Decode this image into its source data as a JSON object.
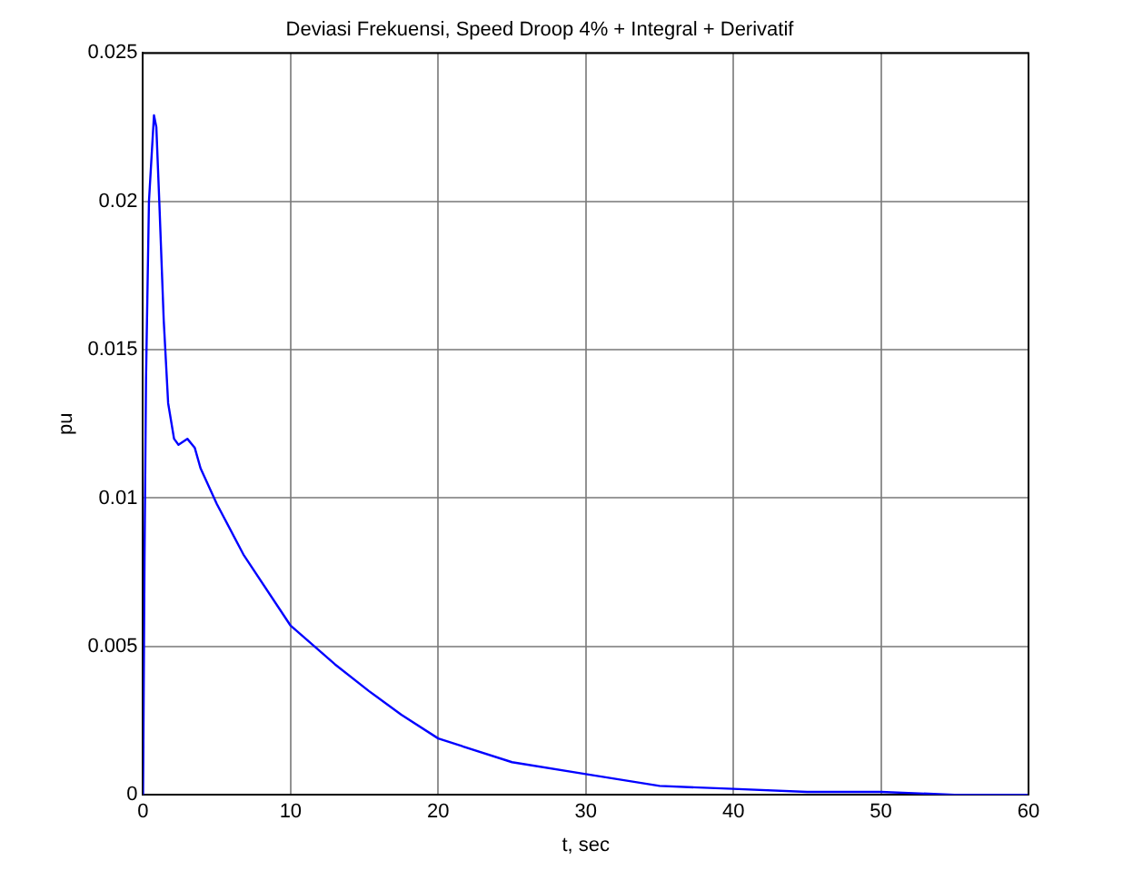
{
  "chart_data": {
    "type": "line",
    "title": "Deviasi Frekuensi, Speed Droop 4% + Integral + Derivatif",
    "xlabel": "t, sec",
    "ylabel": "pu",
    "xlim": [
      0,
      60
    ],
    "xticks": [
      0,
      10,
      20,
      30,
      40,
      50,
      60
    ],
    "ylim": [
      0,
      0.025
    ],
    "yticks": [
      0,
      0.005,
      0.01,
      0.015,
      0.02,
      0.025
    ],
    "grid": true,
    "legend": false,
    "marker": "none",
    "line_style": "solid",
    "series": [
      {
        "color": "#0000ff",
        "x": [
          0,
          0.1,
          0.2,
          0.4,
          0.74,
          0.9,
          1.1,
          1.4,
          1.7,
          2.1,
          2.4,
          3.0,
          3.5,
          3.9,
          5,
          6.8,
          10,
          13,
          15.3,
          17.5,
          20,
          25,
          30,
          35,
          40,
          45,
          50,
          55,
          60
        ],
        "values": [
          0,
          0.008,
          0.014,
          0.02,
          0.0229,
          0.0225,
          0.02,
          0.016,
          0.0132,
          0.012,
          0.0118,
          0.012,
          0.0117,
          0.011,
          0.0098,
          0.0081,
          0.0057,
          0.0044,
          0.0035,
          0.0027,
          0.0019,
          0.0011,
          0.0007,
          0.0003,
          0.0002,
          0.0001,
          0.0001,
          0,
          0
        ]
      }
    ]
  }
}
